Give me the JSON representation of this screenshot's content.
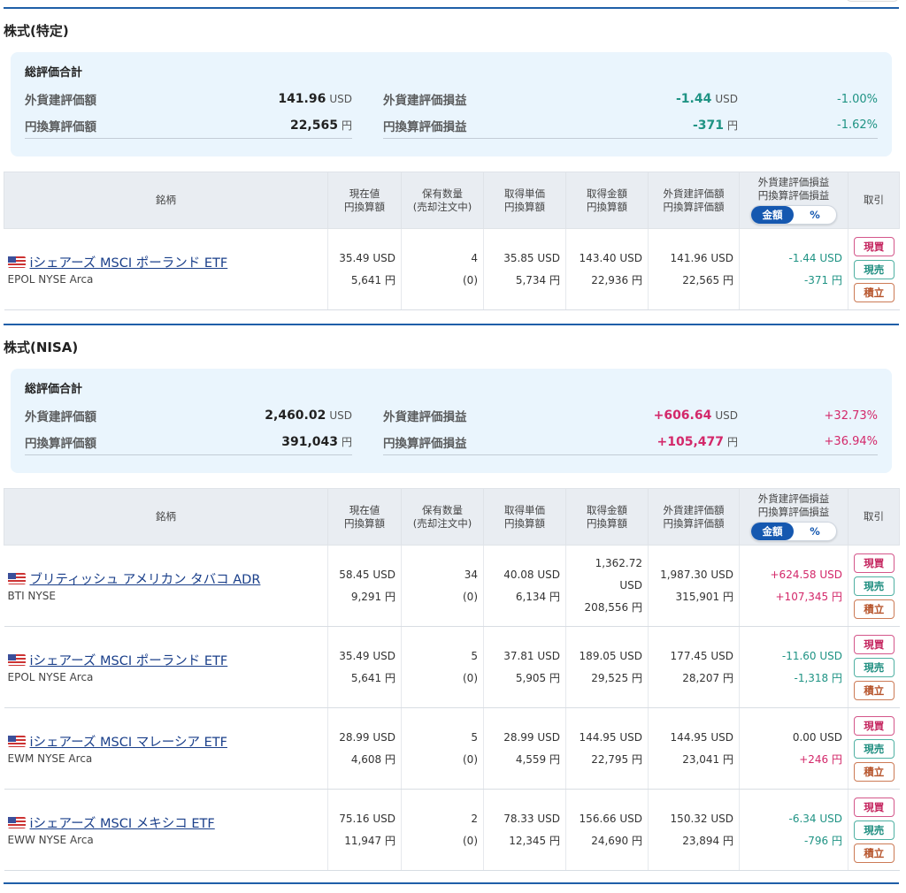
{
  "sections": [
    {
      "title": "株式(特定)",
      "summary": {
        "title": "総評価合計",
        "foreign_value_label": "外貨建評価額",
        "foreign_value": "141.96",
        "foreign_value_unit": "USD",
        "yen_value_label": "円換算評価額",
        "yen_value": "22,565",
        "yen_value_unit": "円",
        "foreign_pl_label": "外貨建評価損益",
        "foreign_pl": "-1.44",
        "foreign_pl_unit": "USD",
        "foreign_pl_pct": "-1.00%",
        "yen_pl_label": "円換算評価損益",
        "yen_pl": "-371",
        "yen_pl_unit": "円",
        "yen_pl_pct": "-1.62%",
        "sign": "neg"
      },
      "rows": [
        {
          "name": "iシェアーズ MSCI ポーランド ETF",
          "sub": "EPOL NYSE Arca",
          "price": "35.49 USD",
          "price_yen": "5,641 円",
          "qty": "4",
          "qty_pending": "(0)",
          "unit_cost": "35.85 USD",
          "unit_cost_yen": "5,734 円",
          "cost": "143.40 USD",
          "cost_yen": "22,936 円",
          "value": "141.96 USD",
          "value_yen": "22,565 円",
          "pl": "-1.44 USD",
          "pl_yen": "-371 円",
          "pl_sign": "neg",
          "pl_yen_sign": "neg"
        }
      ]
    },
    {
      "title": "株式(NISA)",
      "summary": {
        "title": "総評価合計",
        "foreign_value_label": "外貨建評価額",
        "foreign_value": "2,460.02",
        "foreign_value_unit": "USD",
        "yen_value_label": "円換算評価額",
        "yen_value": "391,043",
        "yen_value_unit": "円",
        "foreign_pl_label": "外貨建評価損益",
        "foreign_pl": "+606.64",
        "foreign_pl_unit": "USD",
        "foreign_pl_pct": "+32.73%",
        "yen_pl_label": "円換算評価損益",
        "yen_pl": "+105,477",
        "yen_pl_unit": "円",
        "yen_pl_pct": "+36.94%",
        "sign": "pos"
      },
      "rows": [
        {
          "name": "ブリティッシュ アメリカン タバコ ADR",
          "sub": "BTI NYSE",
          "price": "58.45 USD",
          "price_yen": "9,291 円",
          "qty": "34",
          "qty_pending": "(0)",
          "unit_cost": "40.08 USD",
          "unit_cost_yen": "6,134 円",
          "cost": "1,362.72 USD",
          "cost_yen": "208,556 円",
          "value": "1,987.30 USD",
          "value_yen": "315,901 円",
          "pl": "+624.58 USD",
          "pl_yen": "+107,345 円",
          "pl_sign": "pos",
          "pl_yen_sign": "pos"
        },
        {
          "name": "iシェアーズ MSCI ポーランド ETF",
          "sub": "EPOL NYSE Arca",
          "price": "35.49 USD",
          "price_yen": "5,641 円",
          "qty": "5",
          "qty_pending": "(0)",
          "unit_cost": "37.81 USD",
          "unit_cost_yen": "5,905 円",
          "cost": "189.05 USD",
          "cost_yen": "29,525 円",
          "value": "177.45 USD",
          "value_yen": "28,207 円",
          "pl": "-11.60 USD",
          "pl_yen": "-1,318 円",
          "pl_sign": "neg",
          "pl_yen_sign": "neg"
        },
        {
          "name": "iシェアーズ MSCI マレーシア ETF",
          "sub": "EWM NYSE Arca",
          "price": "28.99 USD",
          "price_yen": "4,608 円",
          "qty": "5",
          "qty_pending": "(0)",
          "unit_cost": "28.99 USD",
          "unit_cost_yen": "4,559 円",
          "cost": "144.95 USD",
          "cost_yen": "22,795 円",
          "value": "144.95 USD",
          "value_yen": "23,041 円",
          "pl": "0.00 USD",
          "pl_yen": "+246 円",
          "pl_sign": "zero",
          "pl_yen_sign": "pos"
        },
        {
          "name": "iシェアーズ MSCI メキシコ ETF",
          "sub": "EWW NYSE Arca",
          "price": "75.16 USD",
          "price_yen": "11,947 円",
          "qty": "2",
          "qty_pending": "(0)",
          "unit_cost": "78.33 USD",
          "unit_cost_yen": "12,345 円",
          "cost": "156.66 USD",
          "cost_yen": "24,690 円",
          "value": "150.32 USD",
          "value_yen": "23,894 円",
          "pl": "-6.34 USD",
          "pl_yen": "-796 円",
          "pl_sign": "neg",
          "pl_yen_sign": "neg"
        }
      ]
    }
  ],
  "table_headers": {
    "name": "銘柄",
    "price": [
      "現在値",
      "円換算額"
    ],
    "qty": [
      "保有数量",
      "(売却注文中)"
    ],
    "unit_cost": [
      "取得単価",
      "円換算額"
    ],
    "cost": [
      "取得金額",
      "円換算額"
    ],
    "value": [
      "外貨建評価額",
      "円換算評価額"
    ],
    "pl": [
      "外貨建評価損益",
      "円換算評価損益"
    ],
    "toggle_amount": "金額",
    "toggle_pct": "%",
    "trade": "取引"
  },
  "trade_buttons": {
    "buy": "現買",
    "sell": "現売",
    "accumulate": "積立"
  },
  "colors": {
    "negative": "#1f9384",
    "positive": "#d3286a",
    "accent": "#1558b0"
  },
  "icons": {
    "flag": "us-flag-icon"
  }
}
